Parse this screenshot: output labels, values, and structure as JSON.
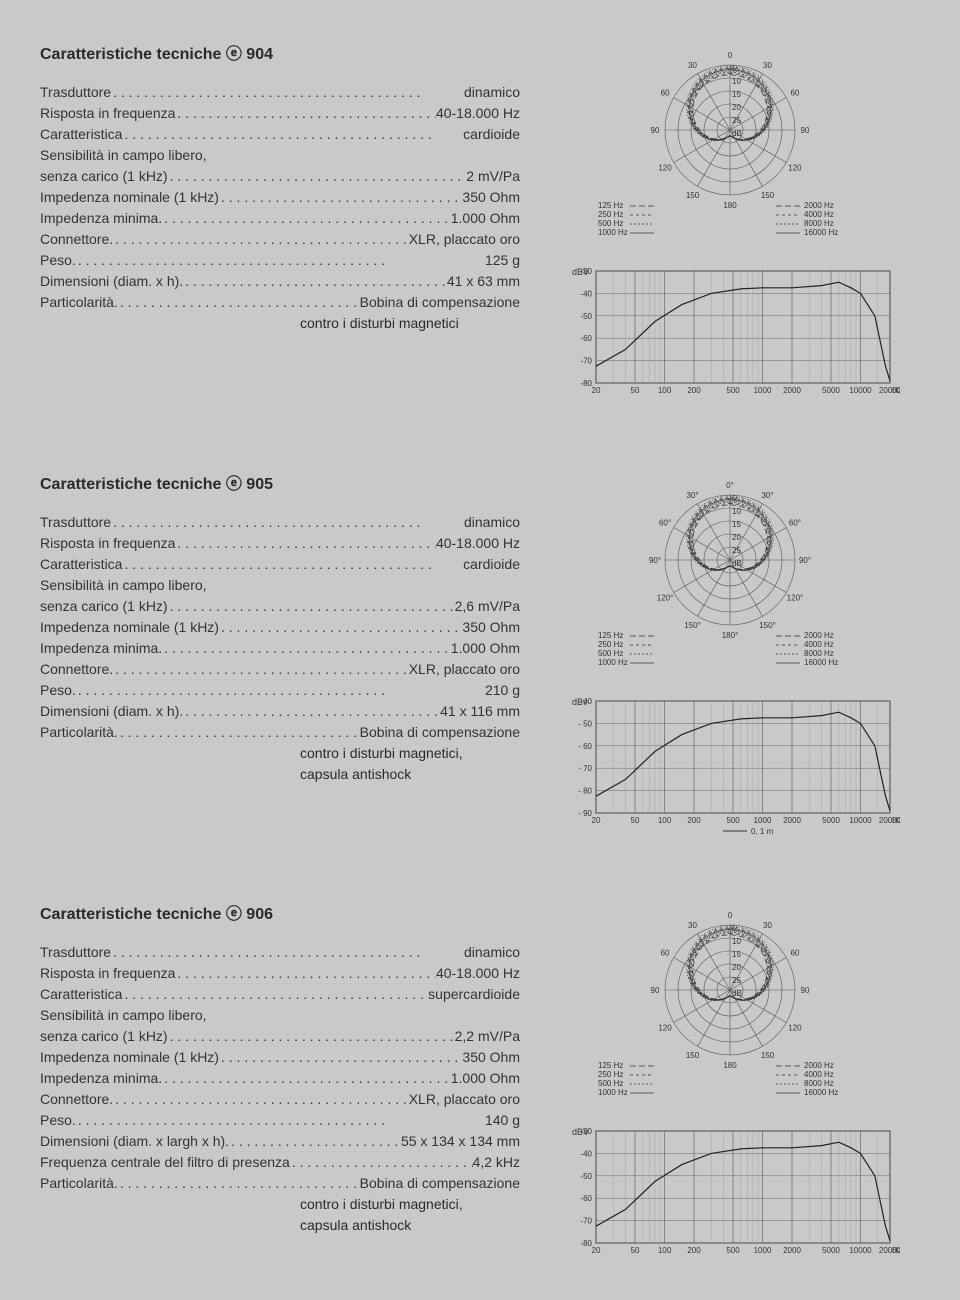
{
  "sections": [
    {
      "title": "Caratteristiche tecniche ⓔ 904",
      "specs": [
        {
          "label": "Trasduttore",
          "value": "dinamico"
        },
        {
          "label": "Risposta in frequenza",
          "value": "40-18.000 Hz"
        },
        {
          "label": "Caratteristica",
          "value": "cardioide"
        },
        {
          "label": "Sensibilità in campo libero,",
          "value": ""
        },
        {
          "label": "senza carico (1 kHz)",
          "value": "2 mV/Pa"
        },
        {
          "label": "Impedenza nominale (1 kHz)",
          "value": "350 Ohm"
        },
        {
          "label": "Impedenza minima.",
          "value": "1.000 Ohm"
        },
        {
          "label": "Connettore.",
          "value": "XLR, placcato oro"
        },
        {
          "label": "Peso.",
          "value": "125 g"
        },
        {
          "label": "Dimensioni (diam. x h).",
          "value": "41 x 63 mm"
        },
        {
          "label": "Particolarità.",
          "value": "Bobina di compensazione"
        }
      ],
      "cont": [
        "contro i disturbi magnetici"
      ],
      "polar": {
        "angles": [
          "0",
          "30",
          "60",
          "90",
          "120",
          "150",
          "180"
        ],
        "rings": [
          "5",
          "10",
          "15",
          "20",
          "25",
          "dB"
        ],
        "legend_left": [
          "125 Hz",
          "250 Hz",
          "500 Hz",
          "1000 Hz"
        ],
        "legend_right": [
          "2000 Hz",
          "4000 Hz",
          "8000 Hz",
          "16000 Hz"
        ]
      },
      "freq": {
        "ylabel": "dBV",
        "yticks": [
          "-30",
          "-40",
          "-50",
          "-60",
          "-70",
          "-80"
        ],
        "xticks": [
          "20",
          "50",
          "100",
          "200",
          "500",
          "1000",
          "2000",
          "5000",
          "10000",
          "20000"
        ],
        "xunit": "Hz",
        "note": ""
      }
    },
    {
      "title": "Caratteristiche tecniche ⓔ 905",
      "specs": [
        {
          "label": "Trasduttore",
          "value": "dinamico"
        },
        {
          "label": "Risposta in frequenza",
          "value": "40-18.000 Hz"
        },
        {
          "label": "Caratteristica",
          "value": "cardioide"
        },
        {
          "label": "Sensibilità in campo libero,",
          "value": ""
        },
        {
          "label": "senza carico (1 kHz)",
          "value": "2,6 mV/Pa"
        },
        {
          "label": "Impedenza nominale (1 kHz)",
          "value": "350 Ohm"
        },
        {
          "label": "Impedenza minima.",
          "value": "1.000 Ohm"
        },
        {
          "label": "Connettore.",
          "value": "XLR, placcato oro"
        },
        {
          "label": "Peso.",
          "value": "210 g"
        },
        {
          "label": "Dimensioni (diam. x h).",
          "value": "41 x 116 mm"
        },
        {
          "label": "Particolarità.",
          "value": "Bobina di compensazione"
        }
      ],
      "cont": [
        "contro i disturbi magnetici,",
        "capsula antishock"
      ],
      "polar": {
        "angles": [
          "0°",
          "30°",
          "60°",
          "90°",
          "120°",
          "150°",
          "180°"
        ],
        "rings": [
          "5",
          "10",
          "15",
          "20",
          "25",
          "dB"
        ],
        "legend_left": [
          "125 Hz",
          "250 Hz",
          "500 Hz",
          "1000 Hz"
        ],
        "legend_right": [
          "2000 Hz",
          "4000 Hz",
          "8000 Hz",
          "16000 Hz"
        ]
      },
      "freq": {
        "ylabel": "dBv",
        "yticks": [
          "- 40",
          "- 50",
          "- 60",
          "- 70",
          "- 80",
          "- 90"
        ],
        "xticks": [
          "20",
          "50",
          "100",
          "200",
          "500",
          "1000",
          "2000",
          "5000",
          "10000",
          "20000"
        ],
        "xunit": "Hz",
        "note": "0, 1 m"
      }
    },
    {
      "title": "Caratteristiche tecniche ⓔ 906",
      "specs": [
        {
          "label": "Trasduttore",
          "value": "dinamico"
        },
        {
          "label": "Risposta in frequenza",
          "value": "40-18.000 Hz"
        },
        {
          "label": "Caratteristica",
          "value": "supercardioide"
        },
        {
          "label": "Sensibilità in campo libero,",
          "value": ""
        },
        {
          "label": "senza carico (1 kHz)",
          "value": "2,2 mV/Pa"
        },
        {
          "label": "Impedenza nominale (1 kHz)",
          "value": "350 Ohm"
        },
        {
          "label": "Impedenza minima.",
          "value": "1.000 Ohm"
        },
        {
          "label": "Connettore.",
          "value": "XLR, placcato oro"
        },
        {
          "label": "Peso.",
          "value": "140 g"
        },
        {
          "label": "Dimensioni (diam. x largh x h).",
          "value": "55 x 134 x 134 mm"
        },
        {
          "label": "Frequenza centrale del filtro di presenza",
          "value": "4,2 kHz"
        },
        {
          "label": "Particolarità.",
          "value": "Bobina di compensazione"
        }
      ],
      "cont": [
        "contro i disturbi magnetici,",
        "capsula antishock"
      ],
      "polar": {
        "angles": [
          "0",
          "30",
          "60",
          "90",
          "120",
          "150",
          "180"
        ],
        "rings": [
          "5",
          "10",
          "15",
          "20",
          "25",
          "dB"
        ],
        "legend_left": [
          "125 Hz",
          "250 Hz",
          "500 Hz",
          "1000 Hz"
        ],
        "legend_right": [
          "2000 Hz",
          "4000 Hz",
          "8000 Hz",
          "16000 Hz"
        ]
      },
      "freq": {
        "ylabel": "dBV",
        "yticks": [
          "-30",
          "-40",
          "-50",
          "-60",
          "-70",
          "-80"
        ],
        "xticks": [
          "20",
          "50",
          "100",
          "200",
          "500",
          "1000",
          "2000",
          "5000",
          "10000",
          "20000"
        ],
        "xunit": "Hz",
        "note": ""
      }
    }
  ],
  "colors": {
    "bg": "#c9c9c9",
    "text": "#2a2a2a",
    "line": "#333333",
    "grid": "#777777"
  }
}
